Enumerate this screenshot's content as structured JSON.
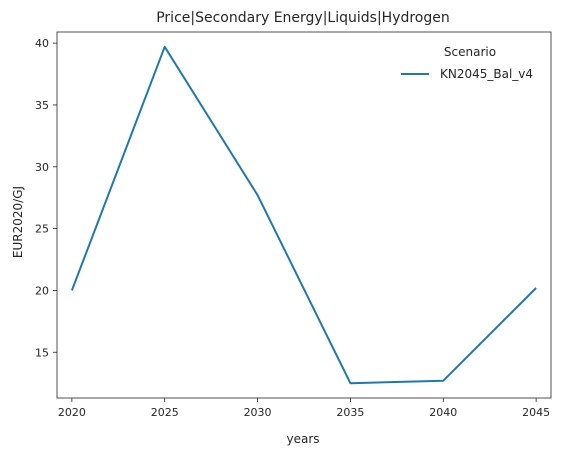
{
  "chart_data": {
    "type": "line",
    "title": "Price|Secondary Energy|Liquids|Hydrogen",
    "xlabel": "years",
    "ylabel": "EUR2020/GJ",
    "x": [
      2020,
      2025,
      2030,
      2035,
      2040,
      2045
    ],
    "xlim": [
      2019.2,
      2045.8
    ],
    "ylim": [
      11.3,
      40.9
    ],
    "xticks": [
      "2020",
      "2025",
      "2030",
      "2035",
      "2040",
      "2045"
    ],
    "yticks": [
      "15",
      "20",
      "25",
      "30",
      "35",
      "40"
    ],
    "grid": false,
    "legend": {
      "title": "Scenario",
      "placement": "top-right"
    },
    "series": [
      {
        "name": "KN2045_Bal_v4",
        "color": "#1f77b4",
        "values": [
          20.0,
          39.7,
          27.7,
          12.5,
          12.7,
          20.2
        ]
      }
    ]
  }
}
